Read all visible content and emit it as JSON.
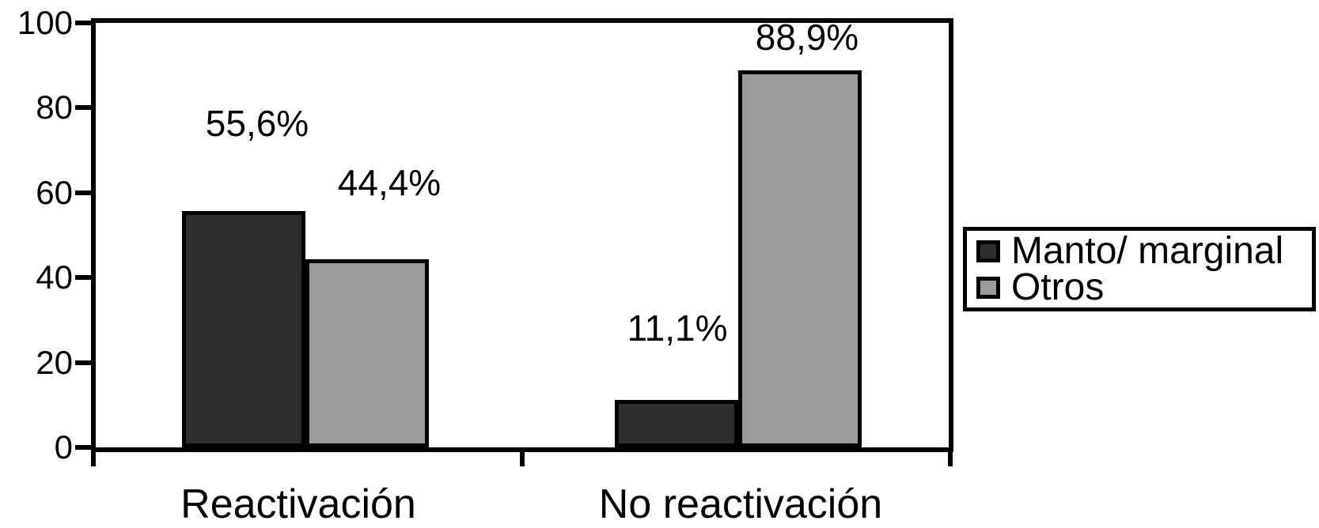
{
  "chart_data": {
    "type": "bar",
    "title": "",
    "categories": [
      "Reactivación",
      "No reactivación"
    ],
    "series": [
      {
        "name": "Manto/ marginal",
        "color": "#2e2e2e",
        "values": [
          55.6,
          11.1
        ],
        "labels": [
          "55,6%",
          "11,1%"
        ]
      },
      {
        "name": "Otros",
        "color": "#9b9b9b",
        "values": [
          44.4,
          88.9
        ],
        "labels": [
          "44,4%",
          "88,9%"
        ]
      }
    ],
    "y_axis": {
      "min": 0,
      "max": 100,
      "ticks": [
        0,
        20,
        40,
        60,
        80,
        100
      ]
    },
    "x_axis": {
      "label": ""
    },
    "grid": false,
    "legend_position": "right",
    "value_format": "comma-decimal-percent",
    "plot_background": "#ffffff",
    "axis_color": "#000000"
  }
}
